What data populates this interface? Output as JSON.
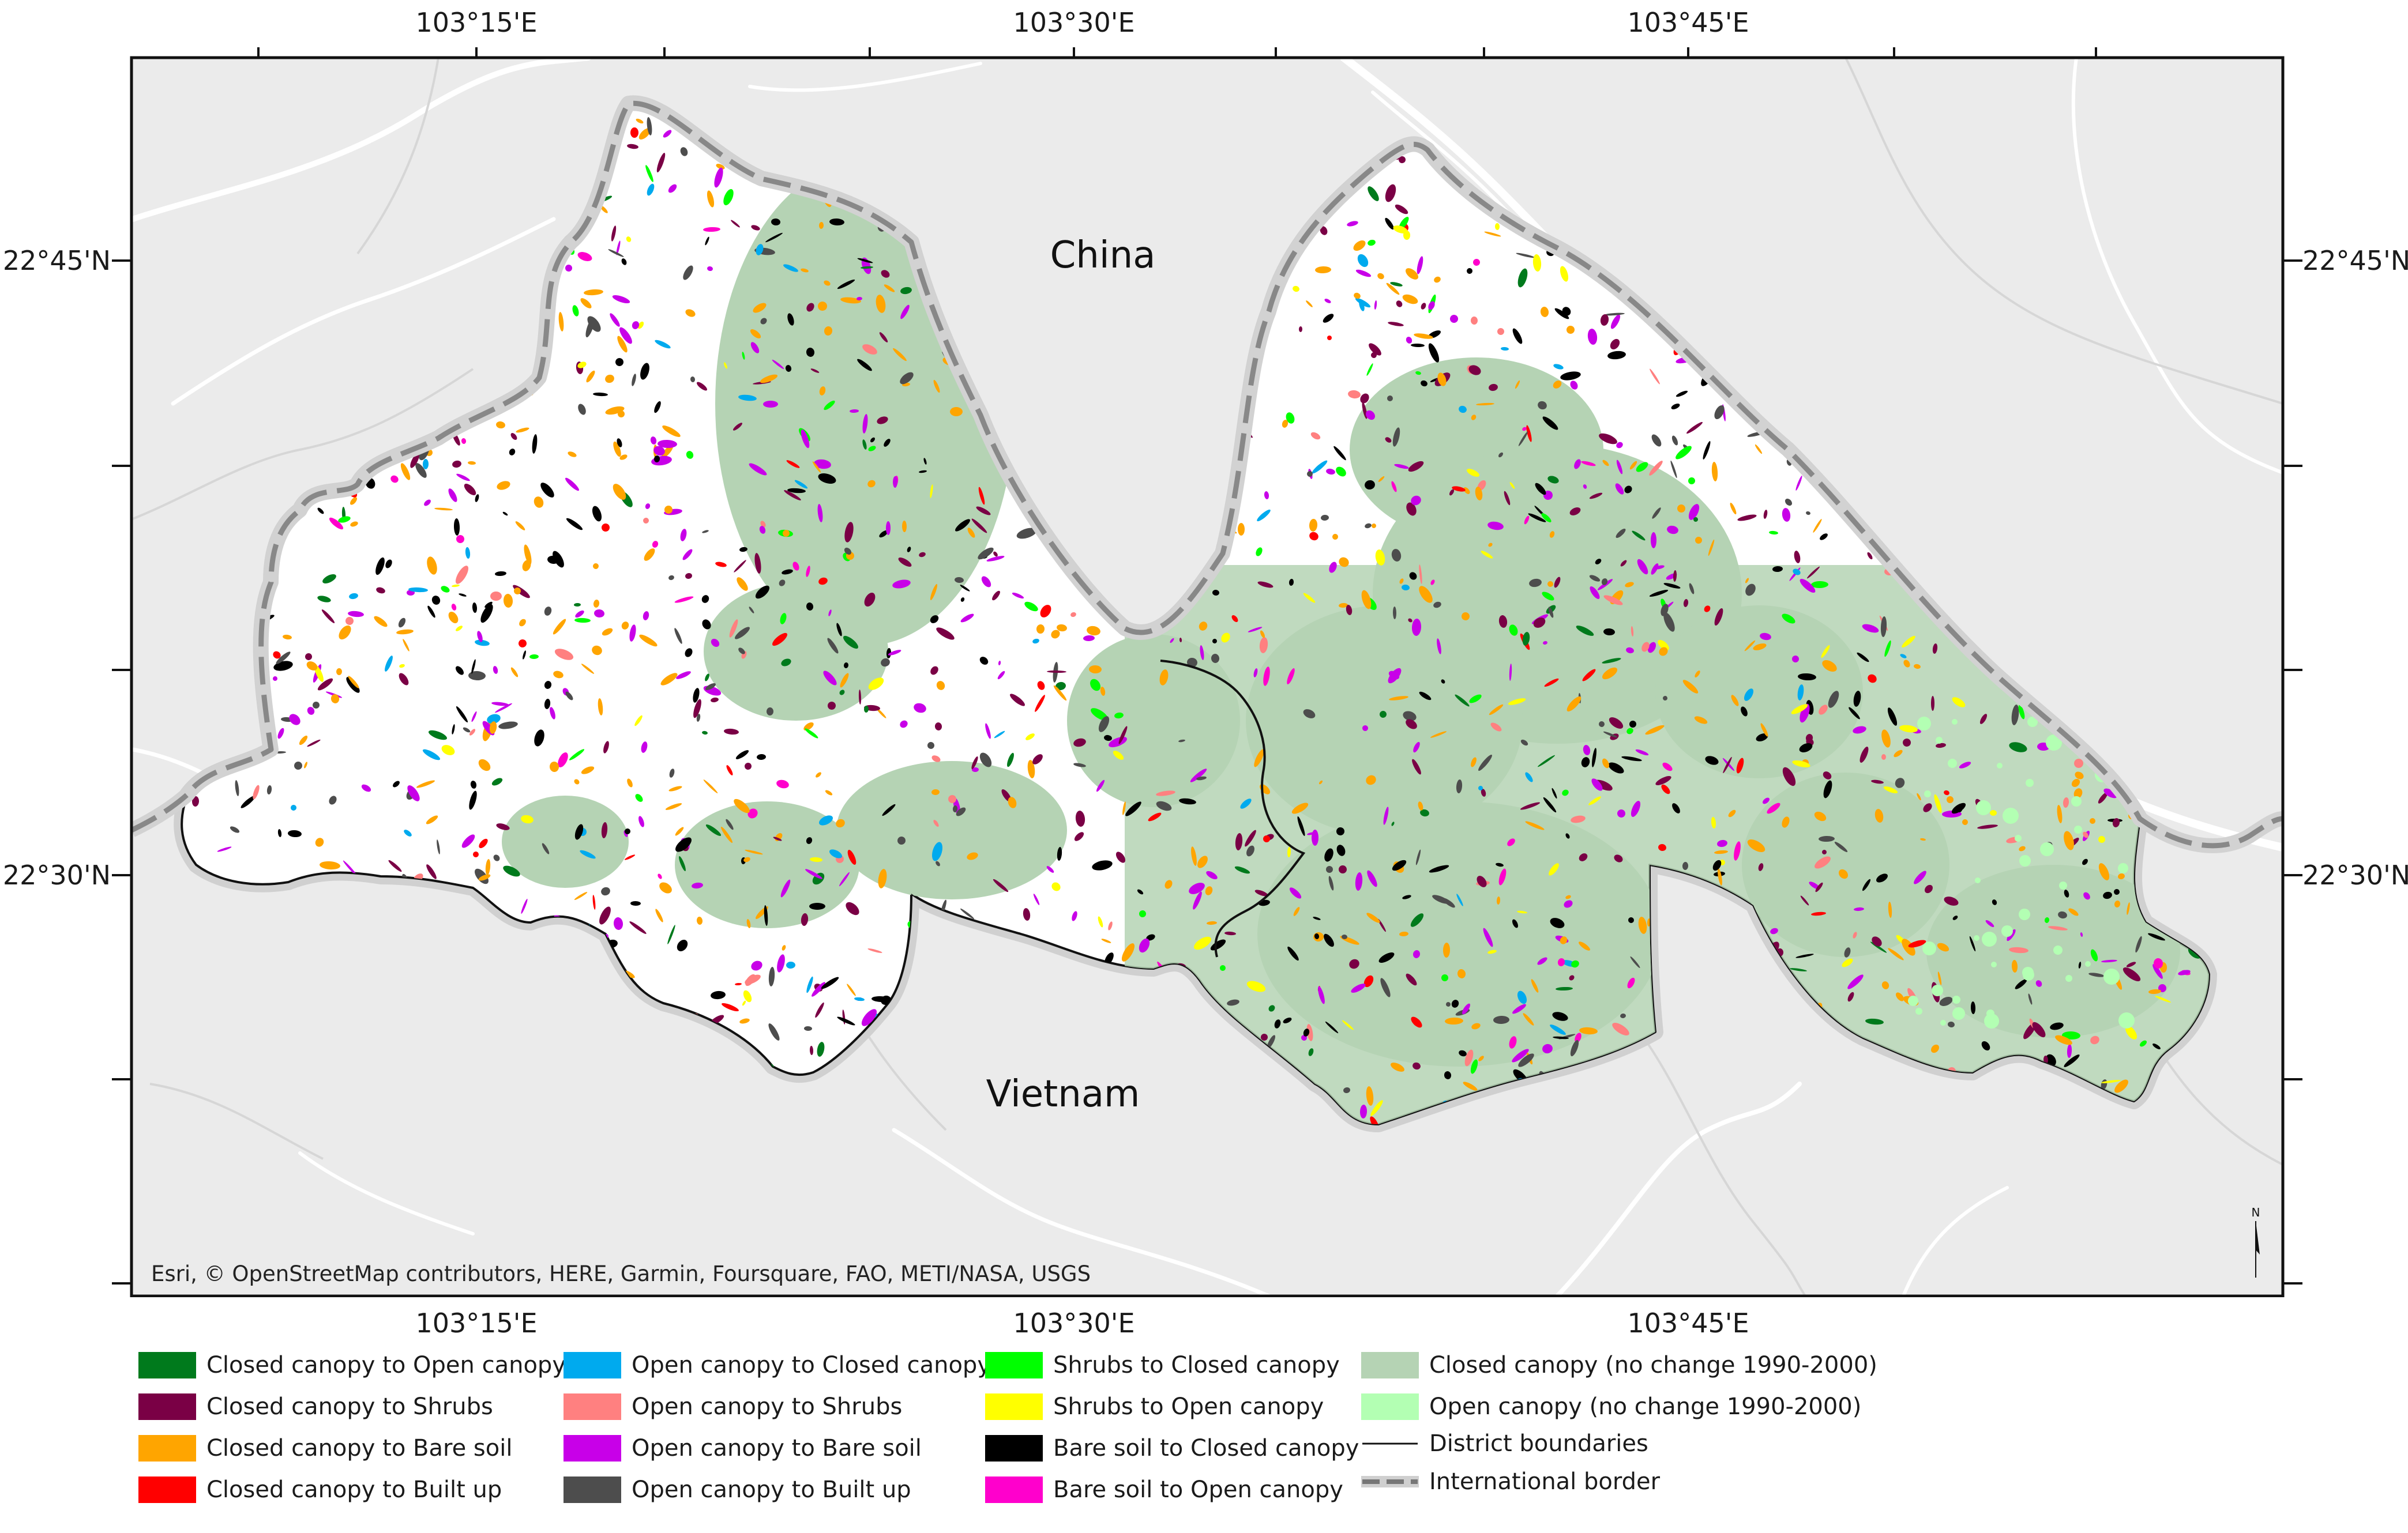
{
  "map": {
    "labels": {
      "china": "China",
      "vietnam": "Vietnam"
    },
    "graticule": {
      "longitudes": [
        "103°15'E",
        "103°30'E",
        "103°45'E"
      ],
      "latitudes": [
        "22°45'N",
        "22°30'N"
      ]
    },
    "attribution": "Esri, © OpenStreetMap contributors, HERE, Garmin, Foursquare, FAO, METI/NASA, USGS",
    "north_arrow_letter": "N",
    "colors": {
      "basemap": "#ebebeb",
      "no_change_closed": "#b5d3b4",
      "no_change_open": "#b3ffb3",
      "border": "#888888"
    }
  },
  "legend": {
    "items": [
      {
        "label": "Closed canopy to Open canopy",
        "color": "#007a1c"
      },
      {
        "label": "Closed canopy to Shrubs",
        "color": "#7a0045"
      },
      {
        "label": "Closed canopy to Bare soil",
        "color": "#ffa500"
      },
      {
        "label": "Closed canopy to Built up",
        "color": "#ff0000"
      },
      {
        "label": "Open canopy to Closed canopy",
        "color": "#00aaee"
      },
      {
        "label": "Open canopy to Shrubs",
        "color": "#ff8080"
      },
      {
        "label": "Open canopy to Bare soil",
        "color": "#c800e8"
      },
      {
        "label": "Open canopy to Built up",
        "color": "#4d4d4d"
      },
      {
        "label": "Shrubs to Closed canopy",
        "color": "#00ff00"
      },
      {
        "label": "Shrubs to Open canopy",
        "color": "#ffff00"
      },
      {
        "label": "Bare soil to Closed canopy",
        "color": "#000000"
      },
      {
        "label": "Bare soil to Open canopy",
        "color": "#ff00cc"
      },
      {
        "label": "Closed canopy (no change 1990-2000)",
        "color": "#b5d3b4"
      },
      {
        "label": "Open canopy (no change 1990-2000)",
        "color": "#b3ffb3"
      }
    ],
    "district_boundaries": "District boundaries",
    "international_border": "International border"
  }
}
